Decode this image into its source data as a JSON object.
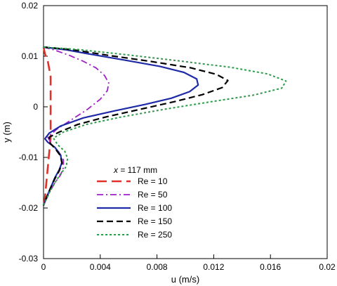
{
  "chart_data": {
    "type": "line",
    "xlabel": "u (m/s)",
    "ylabel": "y (m)",
    "xlim": [
      0,
      0.02
    ],
    "ylim": [
      -0.03,
      0.02
    ],
    "xticks": [
      "0",
      "0.004",
      "0.008",
      "0.012",
      "0.016",
      "0.02"
    ],
    "yticks": [
      "0.02",
      "0.01",
      "0",
      "-0.01",
      "-0.02",
      "-0.03"
    ],
    "grid": false,
    "legend_placement": "lower-left",
    "legend_title_var": "x",
    "legend_title_rest": " = 117 mm",
    "series": [
      {
        "name": "Re = 10",
        "color": "#e0312b",
        "dash": "long-dash",
        "points": [
          [
            0.0,
            0.0118
          ],
          [
            0.0001,
            0.0105
          ],
          [
            0.0003,
            0.009
          ],
          [
            0.0004,
            0.0075
          ],
          [
            0.0005,
            0.006
          ],
          [
            0.0005,
            0.004
          ],
          [
            0.0005,
            0.002
          ],
          [
            0.0005,
            0.0
          ],
          [
            0.0005,
            -0.002
          ],
          [
            0.0005,
            -0.004
          ],
          [
            0.0005,
            -0.006
          ],
          [
            0.0004,
            -0.009
          ],
          [
            0.0003,
            -0.012
          ],
          [
            0.0002,
            -0.015
          ],
          [
            0.0001,
            -0.018
          ],
          [
            0.0,
            -0.02
          ]
        ]
      },
      {
        "name": "Re = 50",
        "color": "#a01fc8",
        "dash": "dash-dot",
        "points": [
          [
            0.0,
            0.0118
          ],
          [
            0.0008,
            0.0112
          ],
          [
            0.0018,
            0.0102
          ],
          [
            0.0028,
            0.009
          ],
          [
            0.0037,
            0.0077
          ],
          [
            0.0043,
            0.0062
          ],
          [
            0.0046,
            0.0047
          ],
          [
            0.0045,
            0.0032
          ],
          [
            0.004,
            0.0015
          ],
          [
            0.0031,
            -0.0005
          ],
          [
            0.002,
            -0.0025
          ],
          [
            0.0009,
            -0.0045
          ],
          [
            0.0003,
            -0.006
          ],
          [
            0.0006,
            -0.0075
          ],
          [
            0.0011,
            -0.009
          ],
          [
            0.0014,
            -0.0105
          ],
          [
            0.0014,
            -0.012
          ],
          [
            0.0012,
            -0.0135
          ],
          [
            0.0008,
            -0.015
          ],
          [
            0.0004,
            -0.017
          ],
          [
            0.0,
            -0.0195
          ]
        ]
      },
      {
        "name": "Re = 100",
        "color": "#1e2aa8",
        "dash": "solid",
        "points": [
          [
            0.0,
            0.0118
          ],
          [
            0.0015,
            0.0113
          ],
          [
            0.0035,
            0.0103
          ],
          [
            0.0058,
            0.0092
          ],
          [
            0.0082,
            0.008
          ],
          [
            0.0099,
            0.0068
          ],
          [
            0.0108,
            0.0055
          ],
          [
            0.0109,
            0.0043
          ],
          [
            0.0103,
            0.003
          ],
          [
            0.009,
            0.0017
          ],
          [
            0.0072,
            0.0005
          ],
          [
            0.005,
            -0.0008
          ],
          [
            0.0028,
            -0.0022
          ],
          [
            0.0012,
            -0.0038
          ],
          [
            0.0004,
            -0.0052
          ],
          [
            0.0001,
            -0.0063
          ],
          [
            0.0003,
            -0.007
          ],
          [
            0.0008,
            -0.008
          ],
          [
            0.0012,
            -0.0095
          ],
          [
            0.0013,
            -0.011
          ],
          [
            0.0011,
            -0.0125
          ],
          [
            0.0008,
            -0.014
          ],
          [
            0.0005,
            -0.016
          ],
          [
            0.0002,
            -0.018
          ],
          [
            0.0,
            -0.0195
          ]
        ]
      },
      {
        "name": "Re = 150",
        "color": "#000000",
        "dash": "dash",
        "points": [
          [
            0.0,
            0.0118
          ],
          [
            0.002,
            0.0113
          ],
          [
            0.0045,
            0.0102
          ],
          [
            0.0075,
            0.009
          ],
          [
            0.0104,
            0.0077
          ],
          [
            0.0122,
            0.0064
          ],
          [
            0.013,
            0.0052
          ],
          [
            0.0126,
            0.0038
          ],
          [
            0.0112,
            0.0024
          ],
          [
            0.0092,
            0.001
          ],
          [
            0.0068,
            -0.0005
          ],
          [
            0.0044,
            -0.002
          ],
          [
            0.0024,
            -0.0035
          ],
          [
            0.0011,
            -0.005
          ],
          [
            0.0004,
            -0.006
          ],
          [
            0.0004,
            -0.007
          ],
          [
            0.0008,
            -0.0082
          ],
          [
            0.0012,
            -0.0097
          ],
          [
            0.0013,
            -0.0112
          ],
          [
            0.0011,
            -0.0127
          ],
          [
            0.0008,
            -0.0142
          ],
          [
            0.0005,
            -0.016
          ],
          [
            0.0002,
            -0.018
          ],
          [
            0.0,
            -0.0195
          ]
        ]
      },
      {
        "name": "Re = 250",
        "color": "#2e9a4b",
        "dash": "dot",
        "points": [
          [
            0.0,
            0.0118
          ],
          [
            0.0025,
            0.0113
          ],
          [
            0.0058,
            0.0103
          ],
          [
            0.0095,
            0.0091
          ],
          [
            0.0132,
            0.0078
          ],
          [
            0.0158,
            0.0065
          ],
          [
            0.0171,
            0.0051
          ],
          [
            0.0168,
            0.0037
          ],
          [
            0.0148,
            0.0023
          ],
          [
            0.0118,
            0.001
          ],
          [
            0.0085,
            -0.0005
          ],
          [
            0.0055,
            -0.002
          ],
          [
            0.003,
            -0.0035
          ],
          [
            0.0014,
            -0.005
          ],
          [
            0.0007,
            -0.0062
          ],
          [
            0.001,
            -0.0075
          ],
          [
            0.0015,
            -0.0088
          ],
          [
            0.0017,
            -0.0102
          ],
          [
            0.0016,
            -0.0118
          ],
          [
            0.0012,
            -0.0133
          ],
          [
            0.0008,
            -0.015
          ],
          [
            0.0004,
            -0.017
          ],
          [
            0.0,
            -0.0195
          ]
        ]
      }
    ]
  }
}
